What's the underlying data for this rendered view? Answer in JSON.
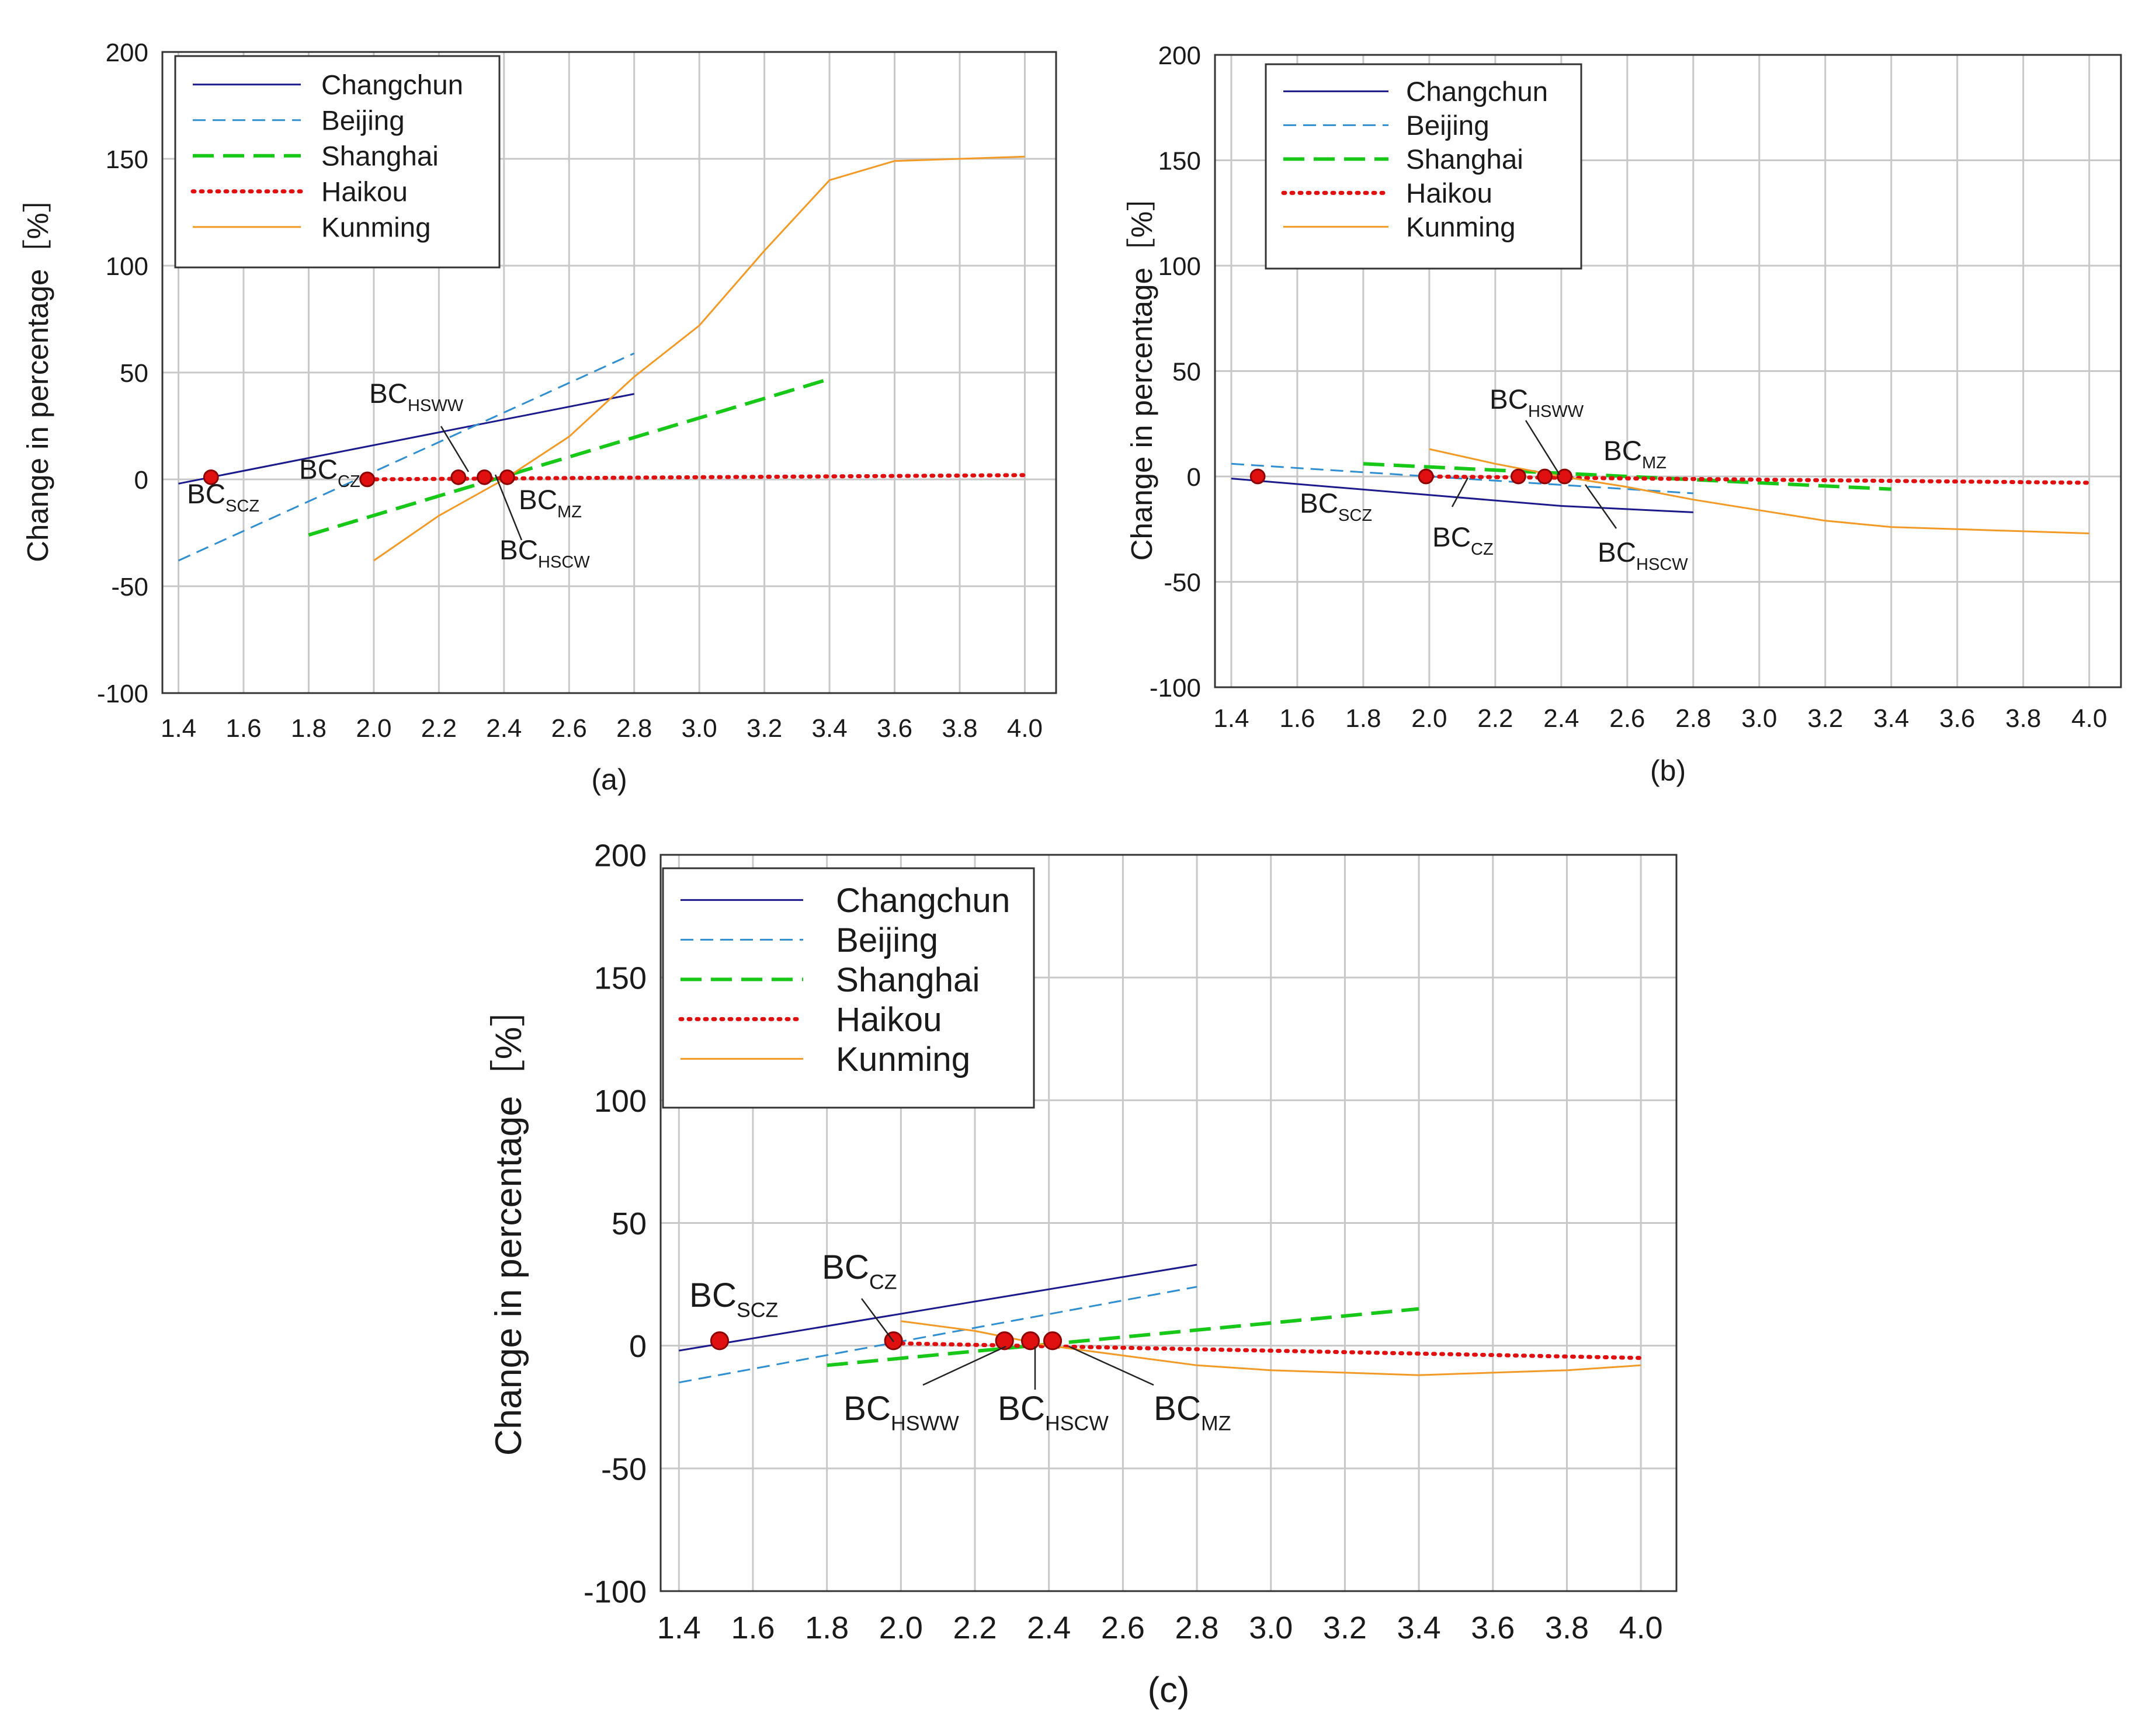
{
  "figure_colors": {
    "Changchun": "#1a1a8c",
    "Beijing": "#2f8fd0",
    "Shanghai": "#18c818",
    "Haikou": "#e01010",
    "Kunming": "#f39a26",
    "marker_fill": "#e01010",
    "marker_stroke": "#8a0000",
    "grid": "#c8c8c8",
    "frame": "#333333"
  },
  "chart_data": [
    {
      "type": "line",
      "panel_label": "(a)",
      "ylabel": "Change in percentage［%］",
      "xlabel": "",
      "xlim": [
        1.4,
        4.0
      ],
      "ylim": [
        -100,
        200
      ],
      "x_ticks": [
        "1.4",
        "1.6",
        "1.8",
        "2.0",
        "2.2",
        "2.4",
        "2.6",
        "2.8",
        "3.0",
        "3.2",
        "3.4",
        "3.6",
        "3.8",
        "4.0"
      ],
      "y_ticks": [
        "-100",
        "-50",
        "0",
        "50",
        "100",
        "150",
        "200"
      ],
      "legend": [
        "Changchun",
        "Beijing",
        "Shanghai",
        "Haikou",
        "Kunming"
      ],
      "legend_position": "top-left",
      "series": [
        {
          "name": "Changchun",
          "x": [
            1.4,
            2.8
          ],
          "y": [
            -2,
            40
          ]
        },
        {
          "name": "Beijing",
          "x": [
            1.4,
            2.8
          ],
          "y": [
            -38,
            59
          ]
        },
        {
          "name": "Shanghai",
          "x": [
            1.8,
            3.4
          ],
          "y": [
            -26,
            47
          ]
        },
        {
          "name": "Haikou",
          "x": [
            1.98,
            4.0
          ],
          "y": [
            0,
            2
          ]
        },
        {
          "name": "Kunming",
          "x": [
            2.0,
            2.2,
            2.4,
            2.6,
            2.8,
            3.0,
            3.2,
            3.4,
            3.6,
            3.8,
            4.0
          ],
          "y": [
            -38,
            -17,
            0,
            20,
            48,
            72,
            107,
            140,
            149,
            150,
            151
          ]
        }
      ],
      "points": [
        {
          "label": "BC",
          "sub": "SCZ",
          "x": 1.5,
          "y": 1
        },
        {
          "label": "BC",
          "sub": "CZ",
          "x": 1.98,
          "y": 0
        },
        {
          "label": "BC",
          "sub": "HSWW",
          "x": 2.26,
          "y": 1
        },
        {
          "label": "BC",
          "sub": "HSCW",
          "x": 2.34,
          "y": 1
        },
        {
          "label": "BC",
          "sub": "MZ",
          "x": 2.41,
          "y": 1
        }
      ]
    },
    {
      "type": "line",
      "panel_label": "(b)",
      "ylabel": "Change in percentage［%］",
      "xlabel": "",
      "xlim": [
        1.4,
        4.0
      ],
      "ylim": [
        -100,
        200
      ],
      "x_ticks": [
        "1.4",
        "1.6",
        "1.8",
        "2.0",
        "2.2",
        "2.4",
        "2.6",
        "2.8",
        "3.0",
        "3.2",
        "3.4",
        "3.6",
        "3.8",
        "4.0"
      ],
      "y_ticks": [
        "-100",
        "-50",
        "0",
        "50",
        "100",
        "150",
        "200"
      ],
      "legend": [
        "Changchun",
        "Beijing",
        "Shanghai",
        "Haikou",
        "Kunming"
      ],
      "legend_position": "top-left",
      "series": [
        {
          "name": "Changchun",
          "x": [
            1.4,
            2.4,
            2.8
          ],
          "y": [
            -1,
            -14,
            -17
          ]
        },
        {
          "name": "Beijing",
          "x": [
            1.4,
            2.8
          ],
          "y": [
            6,
            -8
          ]
        },
        {
          "name": "Shanghai",
          "x": [
            1.8,
            3.4
          ],
          "y": [
            6,
            -6
          ]
        },
        {
          "name": "Haikou",
          "x": [
            1.98,
            4.0
          ],
          "y": [
            0,
            -3
          ]
        },
        {
          "name": "Kunming",
          "x": [
            2.0,
            2.2,
            2.4,
            2.6,
            2.8,
            3.0,
            3.2,
            3.4,
            3.6,
            3.8,
            4.0
          ],
          "y": [
            13,
            6,
            0,
            -5,
            -11,
            -16,
            -21,
            -24,
            -25,
            -26,
            -27
          ]
        }
      ],
      "points": [
        {
          "label": "BC",
          "sub": "SCZ",
          "x": 1.48,
          "y": 0
        },
        {
          "label": "BC",
          "sub": "CZ",
          "x": 1.99,
          "y": 0
        },
        {
          "label": "BC",
          "sub": "HSWW",
          "x": 2.27,
          "y": 0
        },
        {
          "label": "BC",
          "sub": "HSCW",
          "x": 2.35,
          "y": 0
        },
        {
          "label": "BC",
          "sub": "MZ",
          "x": 2.41,
          "y": 0
        }
      ]
    },
    {
      "type": "line",
      "panel_label": "(c)",
      "ylabel": "Change in percentage［%］",
      "xlabel": "",
      "xlim": [
        1.4,
        4.0
      ],
      "ylim": [
        -100,
        200
      ],
      "x_ticks": [
        "1.4",
        "1.6",
        "1.8",
        "2.0",
        "2.2",
        "2.4",
        "2.6",
        "2.8",
        "3.0",
        "3.2",
        "3.4",
        "3.6",
        "3.8",
        "4.0"
      ],
      "y_ticks": [
        "-100",
        "-50",
        "0",
        "50",
        "100",
        "150",
        "200"
      ],
      "legend": [
        "Changchun",
        "Beijing",
        "Shanghai",
        "Haikou",
        "Kunming"
      ],
      "legend_position": "top-left",
      "series": [
        {
          "name": "Changchun",
          "x": [
            1.4,
            2.8
          ],
          "y": [
            -2,
            33
          ]
        },
        {
          "name": "Beijing",
          "x": [
            1.4,
            2.8
          ],
          "y": [
            -15,
            24
          ]
        },
        {
          "name": "Shanghai",
          "x": [
            1.8,
            3.4
          ],
          "y": [
            -8,
            15
          ]
        },
        {
          "name": "Haikou",
          "x": [
            1.98,
            4.0
          ],
          "y": [
            1,
            -5
          ]
        },
        {
          "name": "Kunming",
          "x": [
            2.0,
            2.2,
            2.4,
            2.6,
            2.8,
            3.0,
            3.2,
            3.4,
            3.6,
            3.8,
            4.0
          ],
          "y": [
            10,
            6,
            0,
            -4,
            -8,
            -10,
            -11,
            -12,
            -11,
            -10,
            -8
          ]
        }
      ],
      "points": [
        {
          "label": "BC",
          "sub": "SCZ",
          "x": 1.51,
          "y": 2
        },
        {
          "label": "BC",
          "sub": "CZ",
          "x": 1.98,
          "y": 2
        },
        {
          "label": "BC",
          "sub": "HSWW",
          "x": 2.28,
          "y": 2
        },
        {
          "label": "BC",
          "sub": "HSCW",
          "x": 2.35,
          "y": 2
        },
        {
          "label": "BC",
          "sub": "MZ",
          "x": 2.41,
          "y": 2
        }
      ]
    }
  ]
}
